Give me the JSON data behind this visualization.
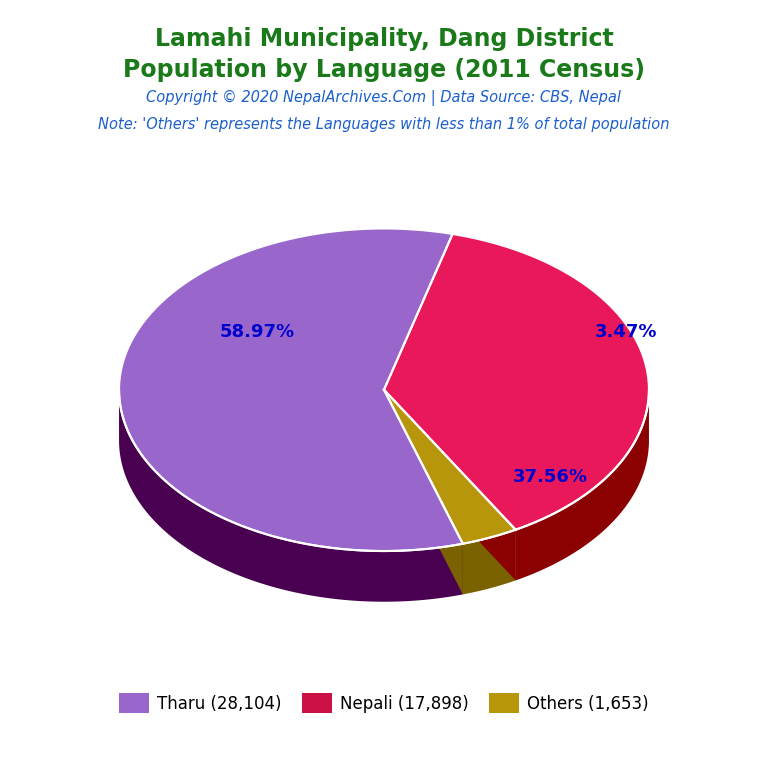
{
  "title_line1": "Lamahi Municipality, Dang District",
  "title_line2": "Population by Language (2011 Census)",
  "title_color": "#1a7a1a",
  "copyright_text": "Copyright © 2020 NepalArchives.Com | Data Source: CBS, Nepal",
  "copyright_color": "#1a5fcc",
  "note_text": "Note: 'Others' represents the Languages with less than 1% of total population",
  "note_color": "#1a5fcc",
  "labels": [
    "Tharu",
    "Nepali",
    "Others"
  ],
  "values": [
    28104,
    17898,
    1653
  ],
  "percentages": [
    "58.97%",
    "37.56%",
    "3.47%"
  ],
  "colors_top": [
    "#9966cc",
    "#e8185a",
    "#b8960c"
  ],
  "colors_side": [
    "#4a0050",
    "#8b0000",
    "#7a6200"
  ],
  "legend_labels": [
    "Tharu (28,104)",
    "Nepali (17,898)",
    "Others (1,653)"
  ],
  "legend_colors": [
    "#9966cc",
    "#cc1144",
    "#b8960c"
  ],
  "background_color": "#ffffff",
  "pct_color": "#0000cc",
  "pct_fontsize": 13
}
